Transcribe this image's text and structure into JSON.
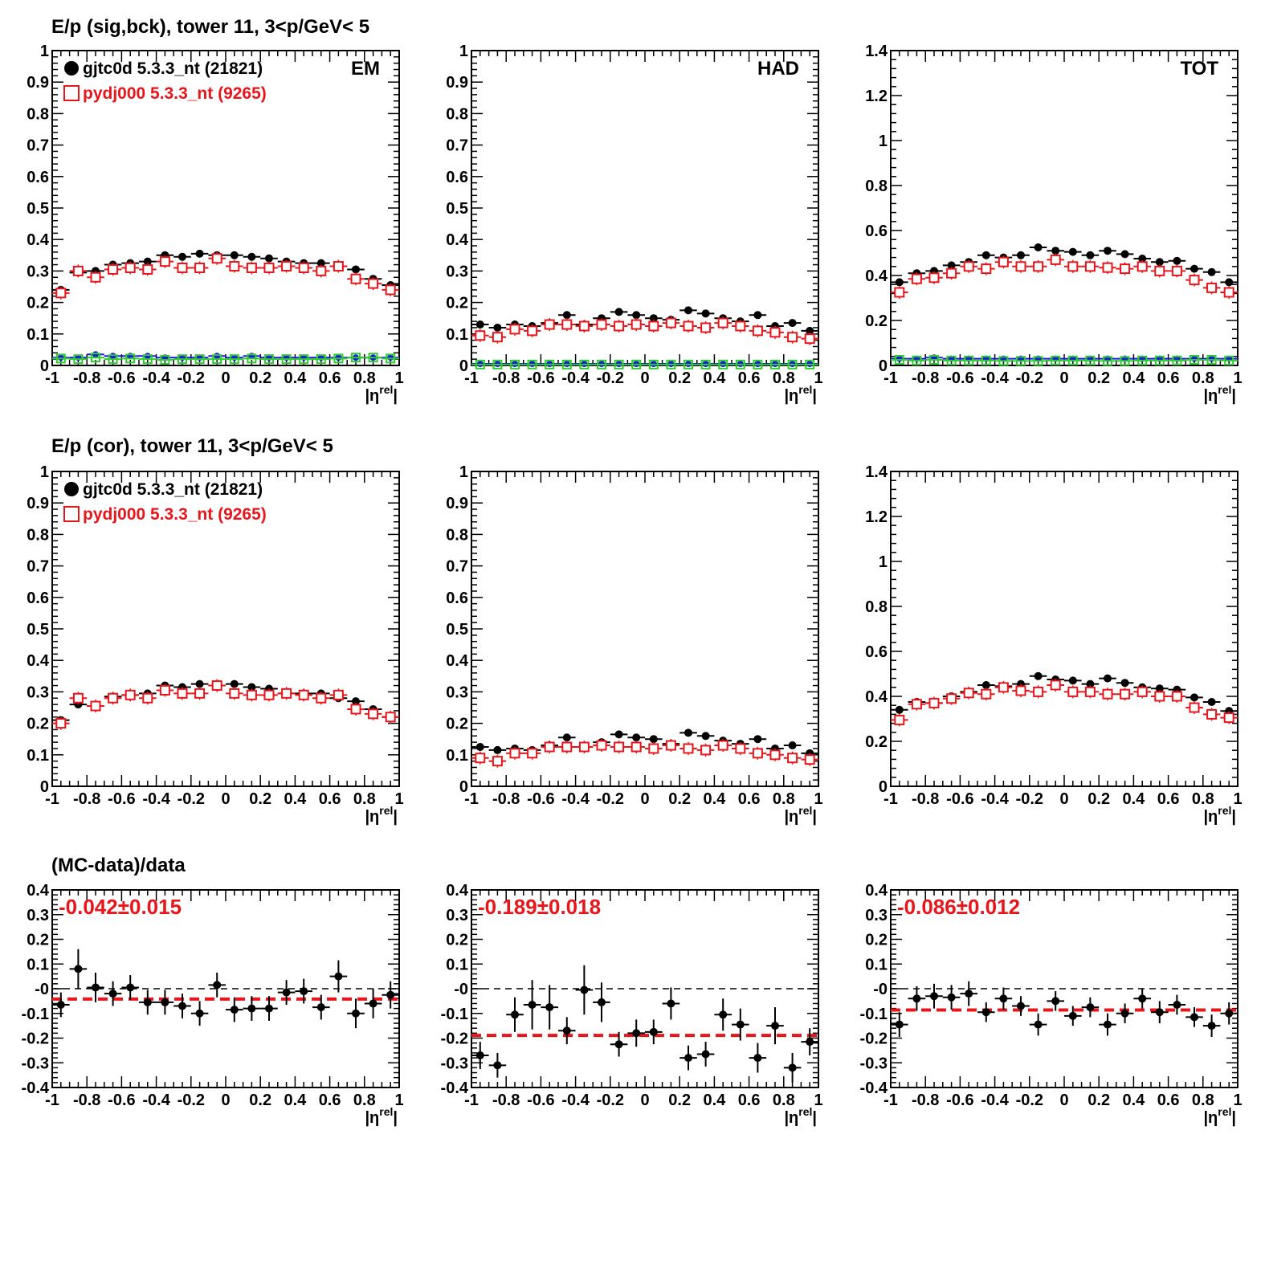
{
  "row_titles": [
    "E/p (sig,bck), tower 11,  3<p/GeV< 5",
    "E/p (cor), tower 11,  3<p/GeV< 5",
    "(MC-data)/data"
  ],
  "legend": {
    "data_label": "gjtc0d 5.3.3_nt (21821)",
    "mc_label": "pydj000 5.3.3_nt (9265)"
  },
  "colors": {
    "data": "#000000",
    "mc": "#e8161b",
    "bck_blue": "#1a1adc",
    "bck_green": "#2ecc2e",
    "fit_line": "#e8161b",
    "zero_line": "#000000"
  },
  "x_axis": {
    "label_main": "|η",
    "label_sup": "rel",
    "label_close": "|",
    "xlim": [
      -1,
      1
    ],
    "tick_labels": [
      "-1",
      "-0.8",
      "-0.6",
      "-0.4",
      "-0.2",
      "0",
      "0.2",
      "0.4",
      "0.6",
      "0.8",
      "1"
    ]
  },
  "chart_data": [
    {
      "type": "scatter",
      "row": 0,
      "col": 0,
      "corner_label": "EM",
      "ylim": [
        0,
        1
      ],
      "yticks": [
        "0",
        "0.1",
        "0.2",
        "0.3",
        "0.4",
        "0.5",
        "0.6",
        "0.7",
        "0.8",
        "0.9",
        "1"
      ],
      "x": [
        -0.95,
        -0.85,
        -0.75,
        -0.65,
        -0.55,
        -0.45,
        -0.35,
        -0.25,
        -0.15,
        -0.05,
        0.05,
        0.15,
        0.25,
        0.35,
        0.45,
        0.55,
        0.65,
        0.75,
        0.85,
        0.95
      ],
      "series": [
        {
          "name": "gjtc0d 5.3.3_nt (21821)",
          "values": [
            0.24,
            0.295,
            0.3,
            0.32,
            0.325,
            0.33,
            0.35,
            0.345,
            0.355,
            0.35,
            0.35,
            0.345,
            0.34,
            0.33,
            0.325,
            0.325,
            0.315,
            0.305,
            0.275,
            0.255
          ]
        },
        {
          "name": "pydj000 5.3.3_nt (9265)",
          "values": [
            0.23,
            0.3,
            0.28,
            0.305,
            0.31,
            0.305,
            0.33,
            0.31,
            0.31,
            0.34,
            0.315,
            0.31,
            0.31,
            0.315,
            0.31,
            0.3,
            0.315,
            0.275,
            0.26,
            0.24
          ]
        },
        {
          "values": [
            0.025,
            0.025,
            0.035,
            0.03,
            0.03,
            0.03,
            0.025,
            0.025,
            0.025,
            0.03,
            0.025,
            0.03,
            0.025,
            0.025,
            0.025,
            0.025,
            0.025,
            0.025,
            0.025,
            0.025
          ]
        },
        {
          "values": [
            0.022,
            0.02,
            0.025,
            0.02,
            0.022,
            0.02,
            0.018,
            0.02,
            0.02,
            0.02,
            0.02,
            0.022,
            0.02,
            0.02,
            0.02,
            0.02,
            0.022,
            0.025,
            0.025,
            0.022
          ]
        }
      ]
    },
    {
      "type": "scatter",
      "row": 0,
      "col": 1,
      "corner_label": "HAD",
      "ylim": [
        0,
        1
      ],
      "yticks": [
        "0",
        "0.1",
        "0.2",
        "0.3",
        "0.4",
        "0.5",
        "0.6",
        "0.7",
        "0.8",
        "0.9",
        "1"
      ],
      "x": [
        -0.95,
        -0.85,
        -0.75,
        -0.65,
        -0.55,
        -0.45,
        -0.35,
        -0.25,
        -0.15,
        -0.05,
        0.05,
        0.15,
        0.25,
        0.35,
        0.45,
        0.55,
        0.65,
        0.75,
        0.85,
        0.95
      ],
      "series": [
        {
          "name": "gjtc0d 5.3.3_nt (21821)",
          "values": [
            0.13,
            0.12,
            0.13,
            0.125,
            0.135,
            0.16,
            0.13,
            0.15,
            0.17,
            0.16,
            0.15,
            0.145,
            0.175,
            0.165,
            0.15,
            0.14,
            0.16,
            0.125,
            0.135,
            0.11
          ]
        },
        {
          "name": "pydj000 5.3.3_nt (9265)",
          "values": [
            0.095,
            0.09,
            0.115,
            0.11,
            0.13,
            0.13,
            0.125,
            0.13,
            0.125,
            0.13,
            0.125,
            0.135,
            0.125,
            0.12,
            0.135,
            0.125,
            0.11,
            0.105,
            0.09,
            0.085
          ]
        },
        {
          "values": [
            0.005,
            0.005,
            0.005,
            0.005,
            0.005,
            0.005,
            0.005,
            0.005,
            0.005,
            0.005,
            0.005,
            0.005,
            0.005,
            0.005,
            0.005,
            0.005,
            0.005,
            0.005,
            0.005,
            0.005
          ]
        },
        {
          "values": [
            0.003,
            0.003,
            0.003,
            0.003,
            0.003,
            0.003,
            0.003,
            0.003,
            0.003,
            0.003,
            0.003,
            0.003,
            0.003,
            0.003,
            0.003,
            0.003,
            0.003,
            0.003,
            0.003,
            0.003
          ]
        }
      ]
    },
    {
      "type": "scatter",
      "row": 0,
      "col": 2,
      "corner_label": "TOT",
      "ylim": [
        0,
        1.4
      ],
      "yticks": [
        "0",
        "0.2",
        "0.4",
        "0.6",
        "0.8",
        "1",
        "1.2",
        "1.4"
      ],
      "x": [
        -0.95,
        -0.85,
        -0.75,
        -0.65,
        -0.55,
        -0.45,
        -0.35,
        -0.25,
        -0.15,
        -0.05,
        0.05,
        0.15,
        0.25,
        0.35,
        0.45,
        0.55,
        0.65,
        0.75,
        0.85,
        0.95
      ],
      "series": [
        {
          "name": "gjtc0d 5.3.3_nt (21821)",
          "values": [
            0.37,
            0.41,
            0.42,
            0.445,
            0.46,
            0.49,
            0.48,
            0.49,
            0.525,
            0.51,
            0.505,
            0.49,
            0.51,
            0.495,
            0.475,
            0.46,
            0.465,
            0.43,
            0.415,
            0.37
          ]
        },
        {
          "name": "pydj000 5.3.3_nt (9265)",
          "values": [
            0.325,
            0.385,
            0.39,
            0.41,
            0.44,
            0.43,
            0.46,
            0.44,
            0.44,
            0.47,
            0.44,
            0.44,
            0.435,
            0.43,
            0.44,
            0.42,
            0.42,
            0.38,
            0.345,
            0.325
          ]
        },
        {
          "values": [
            0.03,
            0.03,
            0.035,
            0.03,
            0.03,
            0.03,
            0.03,
            0.03,
            0.03,
            0.03,
            0.03,
            0.03,
            0.03,
            0.03,
            0.03,
            0.03,
            0.03,
            0.03,
            0.03,
            0.03
          ]
        },
        {
          "values": [
            0.025,
            0.022,
            0.025,
            0.022,
            0.022,
            0.022,
            0.02,
            0.02,
            0.02,
            0.022,
            0.022,
            0.022,
            0.02,
            0.02,
            0.022,
            0.022,
            0.022,
            0.025,
            0.025,
            0.022
          ]
        }
      ]
    },
    {
      "type": "scatter",
      "row": 1,
      "col": 0,
      "ylim": [
        0,
        1
      ],
      "yticks": [
        "0",
        "0.1",
        "0.2",
        "0.3",
        "0.4",
        "0.5",
        "0.6",
        "0.7",
        "0.8",
        "0.9",
        "1"
      ],
      "x": [
        -0.95,
        -0.85,
        -0.75,
        -0.65,
        -0.55,
        -0.45,
        -0.35,
        -0.25,
        -0.15,
        -0.05,
        0.05,
        0.15,
        0.25,
        0.35,
        0.45,
        0.55,
        0.65,
        0.75,
        0.85,
        0.95
      ],
      "series": [
        {
          "name": "gjtc0d 5.3.3_nt (21821)",
          "values": [
            0.21,
            0.26,
            0.255,
            0.285,
            0.29,
            0.295,
            0.32,
            0.315,
            0.325,
            0.32,
            0.325,
            0.315,
            0.31,
            0.295,
            0.295,
            0.295,
            0.28,
            0.27,
            0.245,
            0.22
          ]
        },
        {
          "name": "pydj000 5.3.3_nt (9265)",
          "values": [
            0.2,
            0.28,
            0.255,
            0.28,
            0.29,
            0.28,
            0.305,
            0.295,
            0.295,
            0.32,
            0.295,
            0.29,
            0.29,
            0.295,
            0.29,
            0.28,
            0.29,
            0.245,
            0.23,
            0.22
          ]
        }
      ]
    },
    {
      "type": "scatter",
      "row": 1,
      "col": 1,
      "ylim": [
        0,
        1
      ],
      "yticks": [
        "0",
        "0.1",
        "0.2",
        "0.3",
        "0.4",
        "0.5",
        "0.6",
        "0.7",
        "0.8",
        "0.9",
        "1"
      ],
      "x": [
        -0.95,
        -0.85,
        -0.75,
        -0.65,
        -0.55,
        -0.45,
        -0.35,
        -0.25,
        -0.15,
        -0.05,
        0.05,
        0.15,
        0.25,
        0.35,
        0.45,
        0.55,
        0.65,
        0.75,
        0.85,
        0.95
      ],
      "series": [
        {
          "name": "gjtc0d 5.3.3_nt (21821)",
          "values": [
            0.125,
            0.115,
            0.12,
            0.115,
            0.13,
            0.155,
            0.125,
            0.14,
            0.165,
            0.155,
            0.15,
            0.135,
            0.17,
            0.16,
            0.145,
            0.135,
            0.15,
            0.12,
            0.13,
            0.105
          ]
        },
        {
          "name": "pydj000 5.3.3_nt (9265)",
          "values": [
            0.09,
            0.08,
            0.105,
            0.105,
            0.125,
            0.125,
            0.125,
            0.13,
            0.125,
            0.125,
            0.12,
            0.13,
            0.12,
            0.115,
            0.13,
            0.12,
            0.105,
            0.1,
            0.09,
            0.085
          ]
        }
      ]
    },
    {
      "type": "scatter",
      "row": 1,
      "col": 2,
      "ylim": [
        0,
        1.4
      ],
      "yticks": [
        "0",
        "0.2",
        "0.4",
        "0.6",
        "0.8",
        "1",
        "1.2",
        "1.4"
      ],
      "x": [
        -0.95,
        -0.85,
        -0.75,
        -0.65,
        -0.55,
        -0.45,
        -0.35,
        -0.25,
        -0.15,
        -0.05,
        0.05,
        0.15,
        0.25,
        0.35,
        0.45,
        0.55,
        0.65,
        0.75,
        0.85,
        0.95
      ],
      "series": [
        {
          "name": "gjtc0d 5.3.3_nt (21821)",
          "values": [
            0.34,
            0.375,
            0.37,
            0.4,
            0.42,
            0.45,
            0.445,
            0.455,
            0.49,
            0.475,
            0.47,
            0.455,
            0.48,
            0.46,
            0.44,
            0.435,
            0.43,
            0.395,
            0.375,
            0.335
          ]
        },
        {
          "name": "pydj000 5.3.3_nt (9265)",
          "values": [
            0.295,
            0.365,
            0.37,
            0.39,
            0.415,
            0.41,
            0.44,
            0.425,
            0.42,
            0.45,
            0.42,
            0.42,
            0.41,
            0.41,
            0.42,
            0.4,
            0.4,
            0.35,
            0.32,
            0.305
          ]
        }
      ]
    },
    {
      "type": "scatter",
      "row": 2,
      "col": 0,
      "ylim": [
        -0.4,
        0.4
      ],
      "fit_label": "-0.042±0.015",
      "fit_value": -0.042,
      "yticks": [
        "-0.4",
        "-0.3",
        "-0.2",
        "-0.1",
        "-0",
        "0.1",
        "0.2",
        "0.3",
        "0.4"
      ],
      "x": [
        -0.95,
        -0.85,
        -0.75,
        -0.65,
        -0.55,
        -0.45,
        -0.35,
        -0.25,
        -0.15,
        -0.05,
        0.05,
        0.15,
        0.25,
        0.35,
        0.45,
        0.55,
        0.65,
        0.75,
        0.85,
        0.95
      ],
      "values": [
        -0.065,
        0.08,
        0.005,
        -0.02,
        0.005,
        -0.055,
        -0.055,
        -0.07,
        -0.1,
        0.015,
        -0.085,
        -0.08,
        -0.08,
        -0.015,
        -0.01,
        -0.075,
        0.05,
        -0.1,
        -0.06,
        -0.025
      ],
      "errors": [
        0.05,
        0.08,
        0.06,
        0.05,
        0.05,
        0.05,
        0.05,
        0.05,
        0.05,
        0.05,
        0.05,
        0.05,
        0.05,
        0.05,
        0.05,
        0.05,
        0.065,
        0.06,
        0.06,
        0.055
      ]
    },
    {
      "type": "scatter",
      "row": 2,
      "col": 1,
      "ylim": [
        -0.4,
        0.4
      ],
      "fit_label": "-0.189±0.018",
      "fit_value": -0.189,
      "yticks": [
        "-0.4",
        "-0.3",
        "-0.2",
        "-0.1",
        "-0",
        "0.1",
        "0.2",
        "0.3",
        "0.4"
      ],
      "x": [
        -0.95,
        -0.85,
        -0.75,
        -0.65,
        -0.55,
        -0.45,
        -0.35,
        -0.25,
        -0.15,
        -0.05,
        0.05,
        0.15,
        0.25,
        0.35,
        0.45,
        0.55,
        0.65,
        0.75,
        0.85,
        0.95
      ],
      "values": [
        -0.27,
        -0.31,
        -0.105,
        -0.065,
        -0.075,
        -0.17,
        -0.005,
        -0.055,
        -0.225,
        -0.18,
        -0.175,
        -0.06,
        -0.28,
        -0.265,
        -0.105,
        -0.145,
        -0.28,
        -0.15,
        -0.32,
        -0.215
      ],
      "errors": [
        0.055,
        0.05,
        0.07,
        0.1,
        0.09,
        0.055,
        0.1,
        0.08,
        0.05,
        0.055,
        0.05,
        0.065,
        0.05,
        0.05,
        0.065,
        0.065,
        0.06,
        0.075,
        0.06,
        0.055
      ]
    },
    {
      "type": "scatter",
      "row": 2,
      "col": 2,
      "ylim": [
        -0.4,
        0.4
      ],
      "fit_label": "-0.086±0.012",
      "fit_value": -0.086,
      "yticks": [
        "-0.4",
        "-0.3",
        "-0.2",
        "-0.1",
        "-0",
        "0.1",
        "0.2",
        "0.3",
        "0.4"
      ],
      "x": [
        -0.95,
        -0.85,
        -0.75,
        -0.65,
        -0.55,
        -0.45,
        -0.35,
        -0.25,
        -0.15,
        -0.05,
        0.05,
        0.15,
        0.25,
        0.35,
        0.45,
        0.55,
        0.65,
        0.75,
        0.85,
        0.95
      ],
      "values": [
        -0.145,
        -0.04,
        -0.03,
        -0.035,
        -0.02,
        -0.095,
        -0.04,
        -0.07,
        -0.145,
        -0.05,
        -0.11,
        -0.075,
        -0.145,
        -0.1,
        -0.04,
        -0.095,
        -0.065,
        -0.115,
        -0.15,
        -0.1
      ],
      "errors": [
        0.05,
        0.05,
        0.05,
        0.05,
        0.05,
        0.04,
        0.045,
        0.04,
        0.045,
        0.04,
        0.04,
        0.04,
        0.045,
        0.04,
        0.04,
        0.045,
        0.04,
        0.04,
        0.045,
        0.045
      ]
    }
  ]
}
